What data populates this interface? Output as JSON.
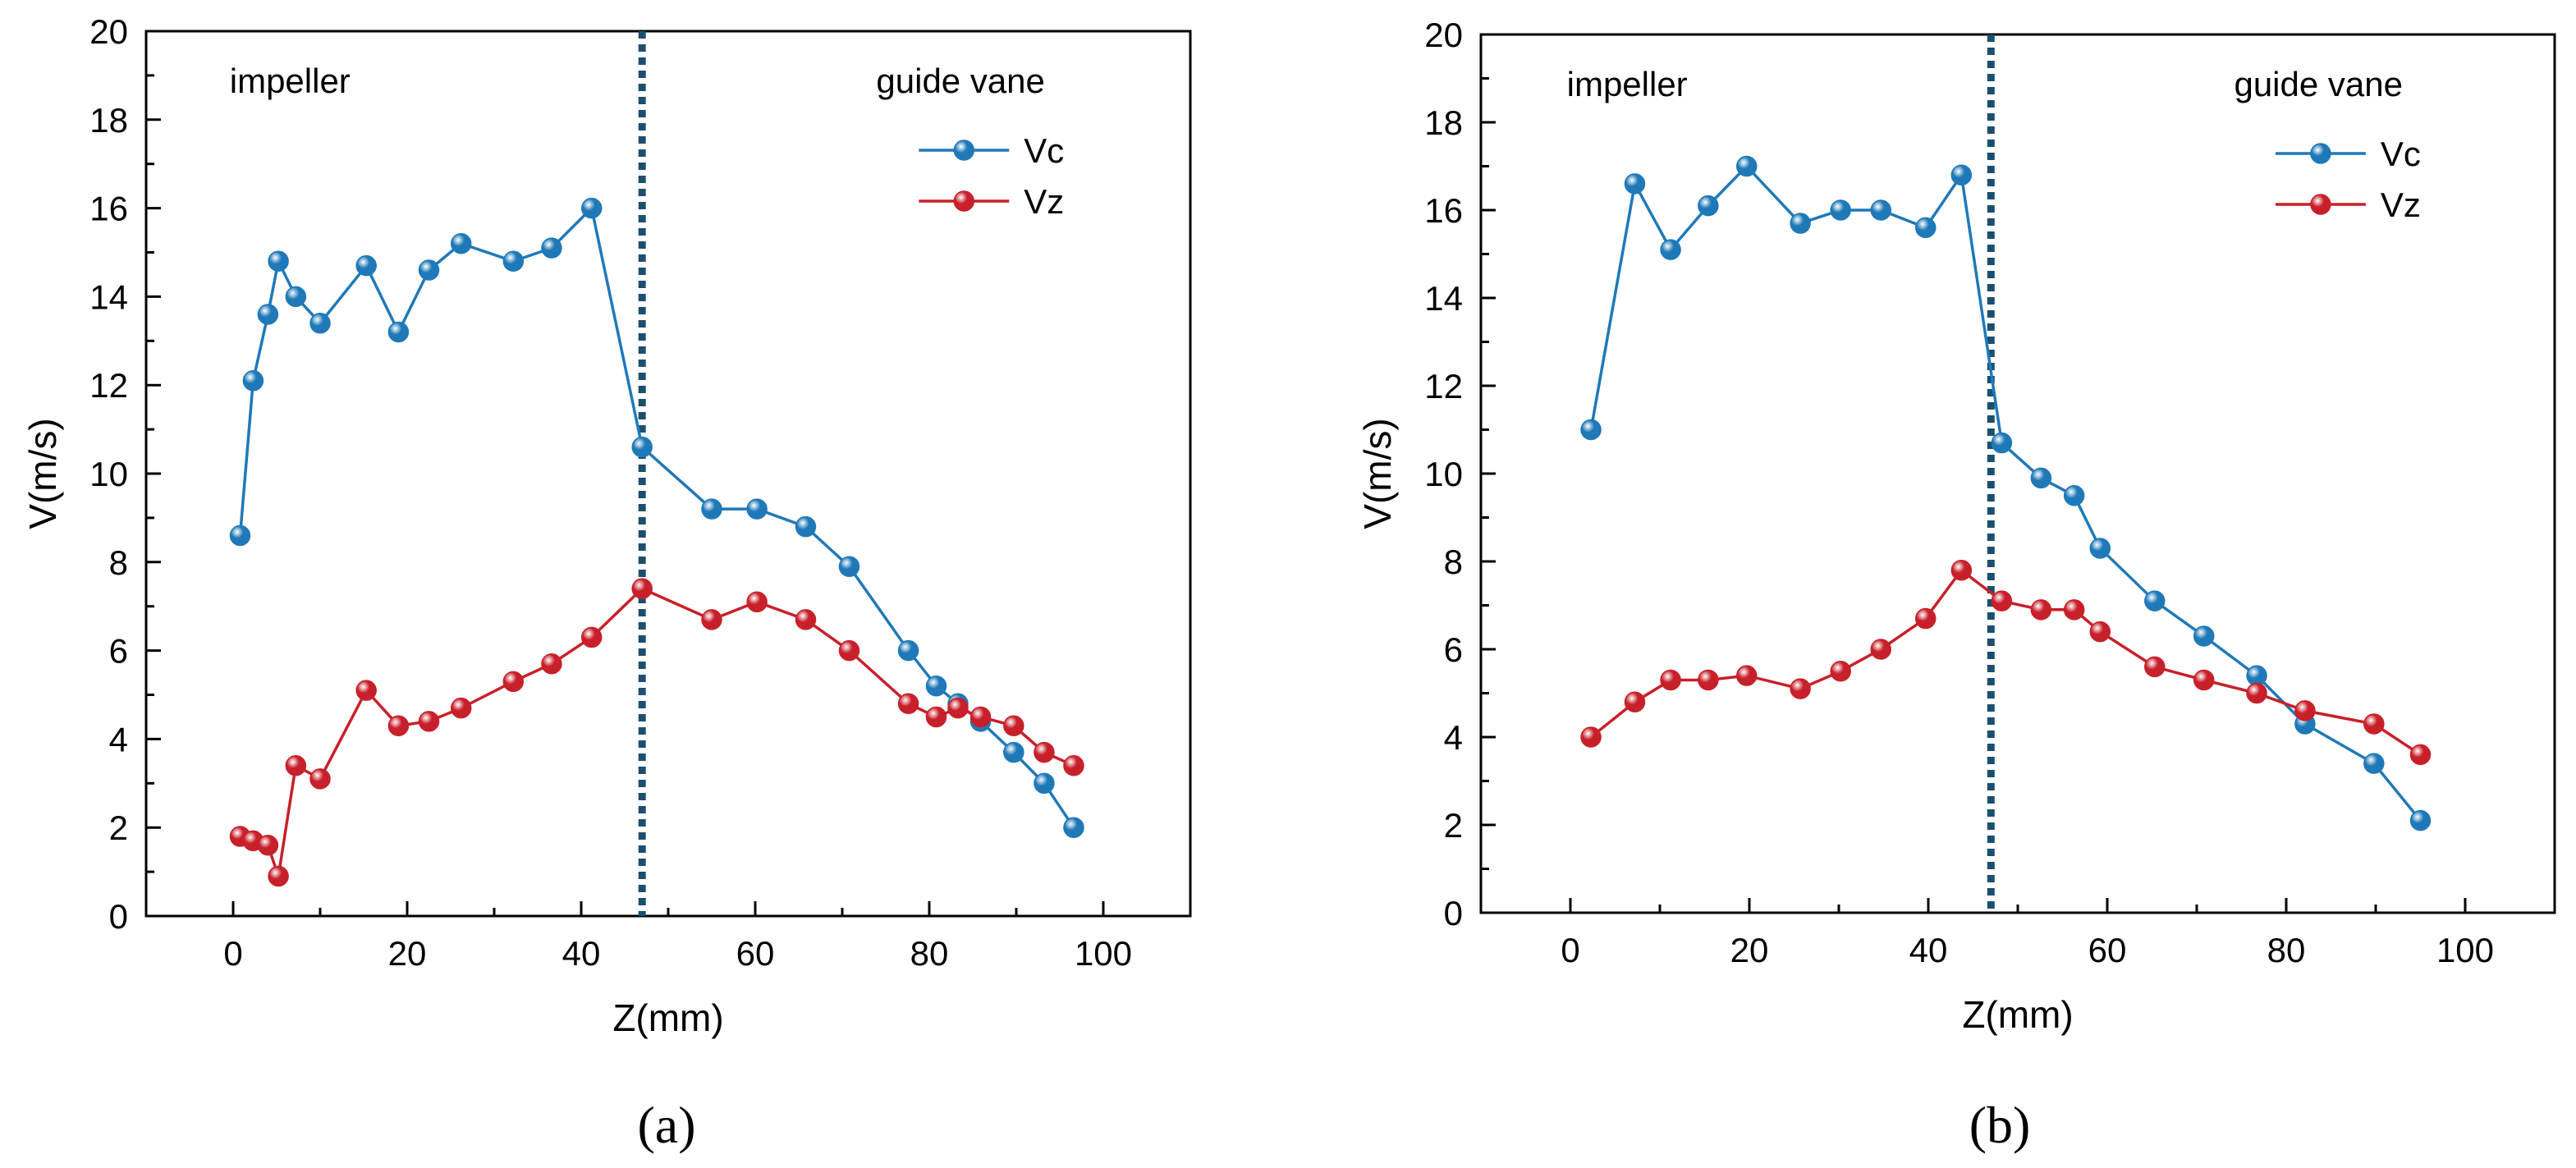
{
  "colors": {
    "vc": "#1f79b8",
    "vz": "#c8202a",
    "divider": "#1b4f6f",
    "axis": "#000000"
  },
  "chart_data": [
    {
      "type": "line",
      "panel": "(a)",
      "xlabel": "Z(mm)",
      "ylabel": "V(m/s)",
      "xlim": [
        -10,
        110
      ],
      "ylim": [
        0,
        20
      ],
      "xticks": [
        0,
        20,
        40,
        60,
        80,
        100
      ],
      "yticks": [
        0,
        2,
        4,
        6,
        8,
        10,
        12,
        14,
        16,
        18,
        20
      ],
      "grid": false,
      "legend_position": "top-right",
      "divider_x": 47,
      "annotations": [
        {
          "text": "impeller",
          "region": "left"
        },
        {
          "text": "guide vane",
          "region": "right"
        }
      ],
      "series": [
        {
          "name": "Vc",
          "x": [
            0.8,
            2.3,
            4.0,
            5.2,
            7.2,
            10,
            15.3,
            19,
            22.5,
            26.2,
            32.2,
            36.6,
            41.2,
            47,
            55,
            60.2,
            65.8,
            70.8,
            77.6,
            80.8,
            83.3,
            85.9,
            89.7,
            93.2,
            96.6
          ],
          "values": [
            8.6,
            12.1,
            13.6,
            14.8,
            14.0,
            13.4,
            14.7,
            13.2,
            14.6,
            15.2,
            14.8,
            15.1,
            16.0,
            10.6,
            9.2,
            9.2,
            8.8,
            7.9,
            6.0,
            5.2,
            4.8,
            4.4,
            3.7,
            3.0,
            2.0
          ]
        },
        {
          "name": "Vz",
          "x": [
            0.8,
            2.3,
            4.0,
            5.2,
            7.2,
            10,
            15.3,
            19,
            22.5,
            26.2,
            32.2,
            36.6,
            41.2,
            47,
            55,
            60.2,
            65.8,
            70.8,
            77.6,
            80.8,
            83.3,
            85.9,
            89.7,
            93.2,
            96.6
          ],
          "values": [
            1.8,
            1.7,
            1.6,
            0.9,
            3.4,
            3.1,
            5.1,
            4.3,
            4.4,
            4.7,
            5.3,
            5.7,
            6.3,
            7.4,
            6.7,
            7.1,
            6.7,
            6.0,
            4.8,
            4.5,
            4.7,
            4.5,
            4.3,
            3.7,
            3.4
          ]
        }
      ]
    },
    {
      "type": "line",
      "panel": "(b)",
      "xlabel": "Z(mm)",
      "ylabel": "V(m/s)",
      "xlim": [
        -10,
        110
      ],
      "ylim": [
        0,
        20
      ],
      "xticks": [
        0,
        20,
        40,
        60,
        80,
        100
      ],
      "yticks": [
        0,
        2,
        4,
        6,
        8,
        10,
        12,
        14,
        16,
        18,
        20
      ],
      "grid": false,
      "legend_position": "top-right",
      "divider_x": 47,
      "annotations": [
        {
          "text": "impeller",
          "region": "left"
        },
        {
          "text": "guide vane",
          "region": "right"
        }
      ],
      "series": [
        {
          "name": "Vc",
          "x": [
            2.3,
            7.2,
            11.2,
            15.4,
            19.7,
            25.7,
            30.2,
            34.7,
            39.7,
            43.7,
            48.2,
            52.6,
            56.3,
            59.2,
            65.3,
            70.8,
            76.7,
            82.1,
            89.8,
            95.0
          ],
          "values": [
            11.0,
            16.6,
            15.1,
            16.1,
            17.0,
            15.7,
            16.0,
            16.0,
            15.6,
            16.8,
            10.7,
            9.9,
            9.5,
            8.3,
            7.1,
            6.3,
            5.4,
            4.3,
            3.4,
            2.1
          ]
        },
        {
          "name": "Vz",
          "x": [
            2.3,
            7.2,
            11.2,
            15.4,
            19.7,
            25.7,
            30.2,
            34.7,
            39.7,
            43.7,
            48.2,
            52.6,
            56.3,
            59.2,
            65.3,
            70.8,
            76.7,
            82.1,
            89.8,
            95.0
          ],
          "values": [
            4.0,
            4.8,
            5.3,
            5.3,
            5.4,
            5.1,
            5.5,
            6.0,
            6.7,
            7.8,
            7.1,
            6.9,
            6.9,
            6.4,
            5.6,
            5.3,
            5.0,
            4.6,
            4.3,
            3.6
          ]
        }
      ]
    }
  ]
}
